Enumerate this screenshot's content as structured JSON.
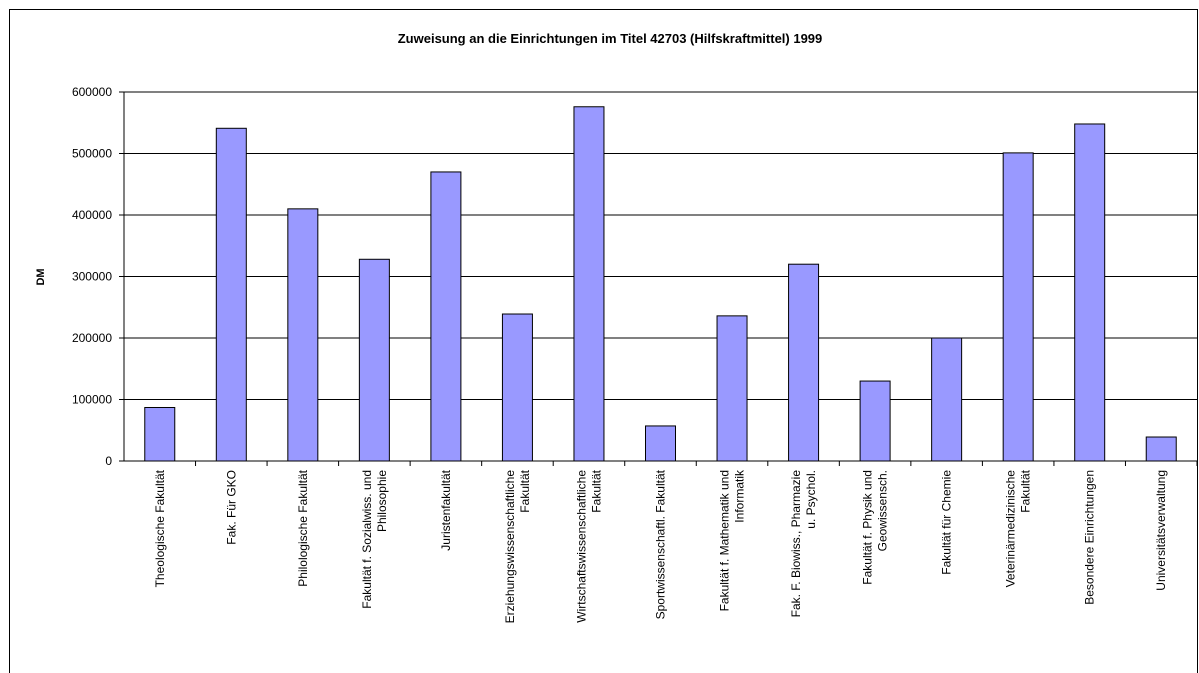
{
  "chart_data": {
    "type": "bar",
    "title": "Zuweisung an die Einrichtungen im Titel 42703 (Hilfskraftmittel) 1999",
    "y_label": "DM",
    "categories": [
      "Theologische Fakultät",
      "Fak. Für GKO",
      "Philologische Fakultät",
      "Fakultät f. Sozialwiss. und Philosophie",
      "Juristenfakultät",
      "Erziehungswissenschaftliche Fakultät",
      "Wirtschaftswissenschaftliche Fakultät",
      "Sportwissenschaftl. Fakultät",
      "Fakultät f. Mathematik und Informatik",
      "Fak. F. Biowiss., Pharmazie u. Psychol.",
      "Fakultät f. Physik und Geowissensch.",
      "Fakultät für Chemie",
      "Veterinärmedizinische Fakultät",
      "Besondere Einrichtungen",
      "Universitätsverwaltung"
    ],
    "values": [
      87000,
      541000,
      410000,
      328000,
      470000,
      239000,
      576000,
      57000,
      236000,
      320000,
      130000,
      200000,
      501000,
      548000,
      39000
    ],
    "color": "#9999ff",
    "ylim": [
      0,
      600000
    ],
    "yticks": [
      0,
      100000,
      200000,
      300000,
      400000,
      500000,
      600000
    ],
    "grid": true
  }
}
